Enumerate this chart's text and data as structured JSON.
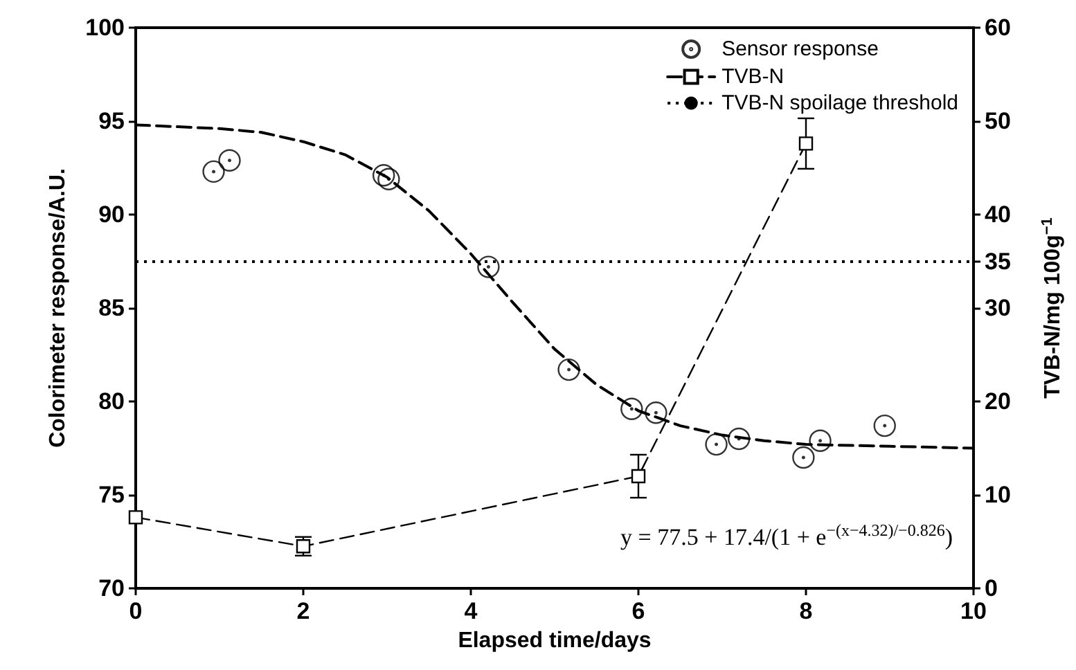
{
  "chart_data": {
    "type": "scatter",
    "xlabel": "Elapsed time/days",
    "ylabel": "Colorimeter response/A.U.",
    "y2label": "TVB-N/mg 100g$^{−1}$",
    "xlim": [
      0,
      10
    ],
    "xticks": [
      0,
      2,
      4,
      6,
      8,
      10
    ],
    "ylim": [
      70,
      100
    ],
    "yticks": [
      70,
      75,
      80,
      85,
      90,
      95,
      100
    ],
    "y2lim": [
      0,
      60
    ],
    "y2ticks": [
      0,
      10,
      20,
      30,
      35,
      40,
      50,
      60
    ],
    "series": [
      {
        "name": "Sensor response",
        "color": "#000000",
        "marker": "circle",
        "x": [
          0.93,
          1.12,
          2.96,
          3.02,
          4.21,
          5.17,
          5.92,
          6.21,
          6.93,
          7.2,
          7.97,
          8.17,
          8.94
        ],
        "values": [
          92.3,
          92.9,
          92.1,
          91.9,
          87.2,
          81.7,
          79.6,
          79.4,
          77.7,
          78.0,
          77.0,
          77.9,
          78.7
        ]
      },
      {
        "name": "TVB-N",
        "type": "line",
        "axis": "y2",
        "color": "#000000",
        "marker": "square",
        "line_style": "dashed",
        "x": [
          0,
          2,
          6,
          8
        ],
        "values": [
          7.6,
          4.5,
          12.0,
          47.6
        ],
        "errors": [
          null,
          1.0,
          2.3,
          2.7
        ]
      },
      {
        "type": "line",
        "color": "#000000",
        "marker": "none",
        "line_style": "dashed",
        "x": [
          0,
          0.5,
          1,
          1.5,
          2,
          2.5,
          3,
          3.5,
          4,
          4.5,
          5,
          5.5,
          6,
          6.5,
          7,
          7.5,
          8,
          9,
          10
        ],
        "values": [
          94.8,
          94.7,
          94.6,
          94.4,
          93.9,
          93.2,
          92.0,
          90.2,
          87.9,
          85.3,
          82.8,
          80.9,
          79.5,
          78.7,
          78.2,
          77.9,
          77.7,
          77.6,
          77.5
        ]
      }
    ],
    "ref_lines": [
      {
        "axis": "y2",
        "value": 35,
        "label": "TVB-N spoilage threshold",
        "color": "#000000",
        "line_style": "dotted"
      }
    ],
    "annotations": [
      "y = 77.5 + 17.4/(1 + e$^{−(x−4.32)/−0.826}$)"
    ],
    "legend": "top right",
    "grid": false
  }
}
